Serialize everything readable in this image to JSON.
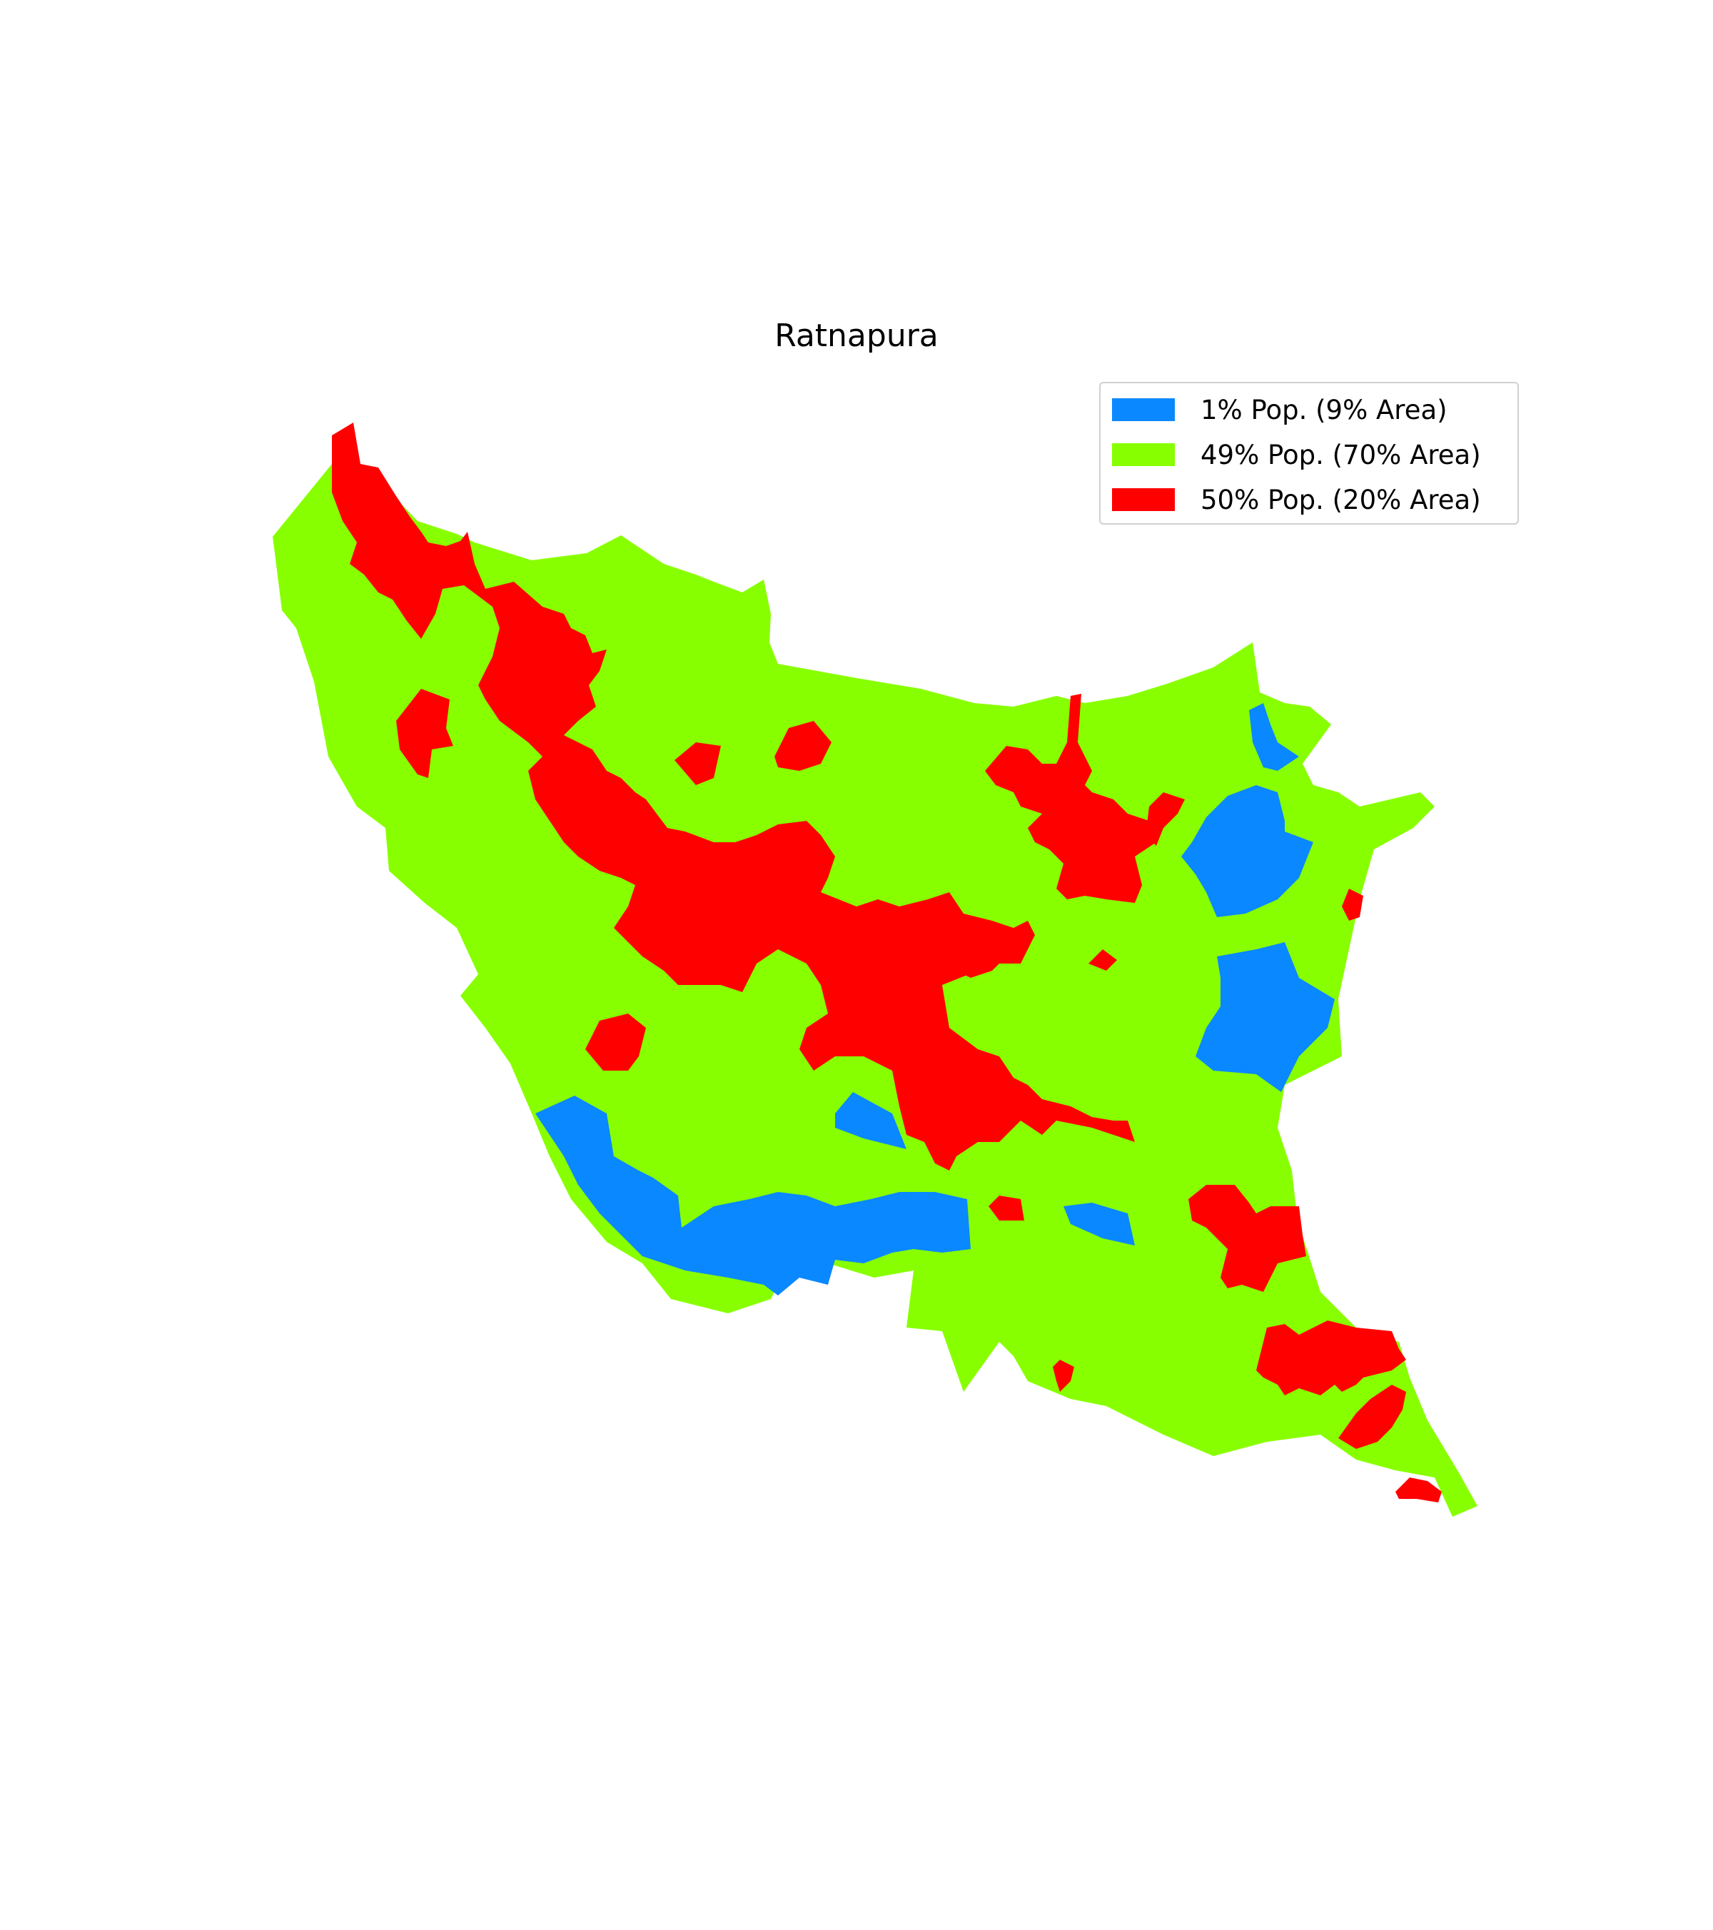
{
  "map": {
    "title": "Ratnapura",
    "legend": [
      {
        "label": "1% Pop. (9% Area)",
        "color": "#0a88ff"
      },
      {
        "label": "49% Pop. (70% Area)",
        "color": "#88ff00"
      },
      {
        "label": "50% Pop. (20% Area)",
        "color": "#ff0000"
      }
    ]
  }
}
